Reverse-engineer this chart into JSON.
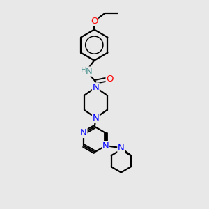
{
  "bg_color": "#e8e8e8",
  "atom_color_N": "#0000ff",
  "atom_color_O": "#ff0000",
  "atom_color_C": "#000000",
  "atom_color_NH": "#4a9090",
  "bond_color": "#000000",
  "bond_width": 1.6,
  "font_size_atom": 8.5,
  "fig_width": 3.0,
  "fig_height": 3.0,
  "dpi": 100,
  "xlim": [
    0,
    10
  ],
  "ylim": [
    0,
    10
  ]
}
